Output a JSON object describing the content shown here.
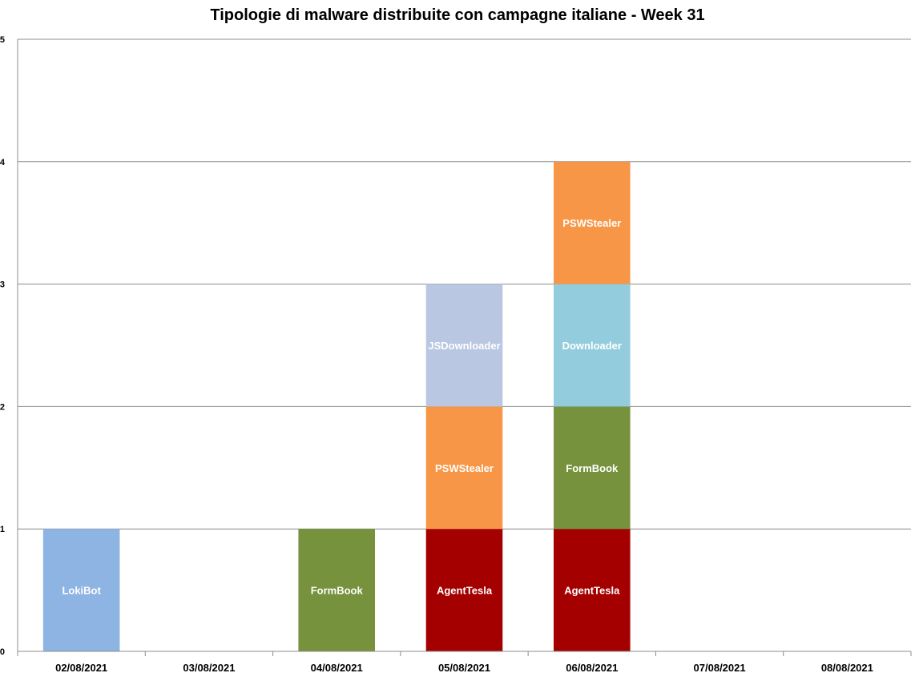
{
  "chart_data": {
    "type": "bar",
    "stacked": true,
    "title": "Tipologie di malware distribuite con campagne italiane - Week 31",
    "xlabel": "",
    "ylabel": "",
    "categories": [
      "02/08/2021",
      "03/08/2021",
      "04/08/2021",
      "05/08/2021",
      "06/08/2021",
      "07/08/2021",
      "08/08/2021"
    ],
    "ylim": [
      0,
      5
    ],
    "yticks": [
      "0",
      "1",
      "2",
      "3",
      "4",
      "5"
    ],
    "grid": true,
    "legend": "none",
    "series": [
      {
        "name": "LokiBot",
        "color": "#8EB4E3",
        "values": [
          1,
          0,
          0,
          0,
          0,
          0,
          0
        ]
      },
      {
        "name": "AgentTesla",
        "color": "#A50000",
        "values": [
          0,
          0,
          0,
          1,
          1,
          0,
          0
        ]
      },
      {
        "name": "FormBook",
        "color": "#76923C",
        "values": [
          0,
          0,
          1,
          0,
          1,
          0,
          0
        ]
      },
      {
        "name": "PSWStealer",
        "color": "#F79646",
        "values": [
          0,
          0,
          0,
          1,
          1,
          0,
          0
        ]
      },
      {
        "name": "JSDownloader",
        "color": "#B9C7E2",
        "values": [
          0,
          0,
          0,
          1,
          0,
          0,
          0
        ]
      },
      {
        "name": "Downloader",
        "color": "#93CDDD",
        "values": [
          0,
          0,
          0,
          0,
          1,
          0,
          0
        ]
      }
    ],
    "stack_order": {
      "02/08/2021": [
        "LokiBot"
      ],
      "04/08/2021": [
        "FormBook"
      ],
      "05/08/2021": [
        "AgentTesla",
        "PSWStealer",
        "JSDownloader"
      ],
      "06/08/2021": [
        "AgentTesla",
        "FormBook",
        "Downloader",
        "PSWStealer"
      ]
    }
  }
}
